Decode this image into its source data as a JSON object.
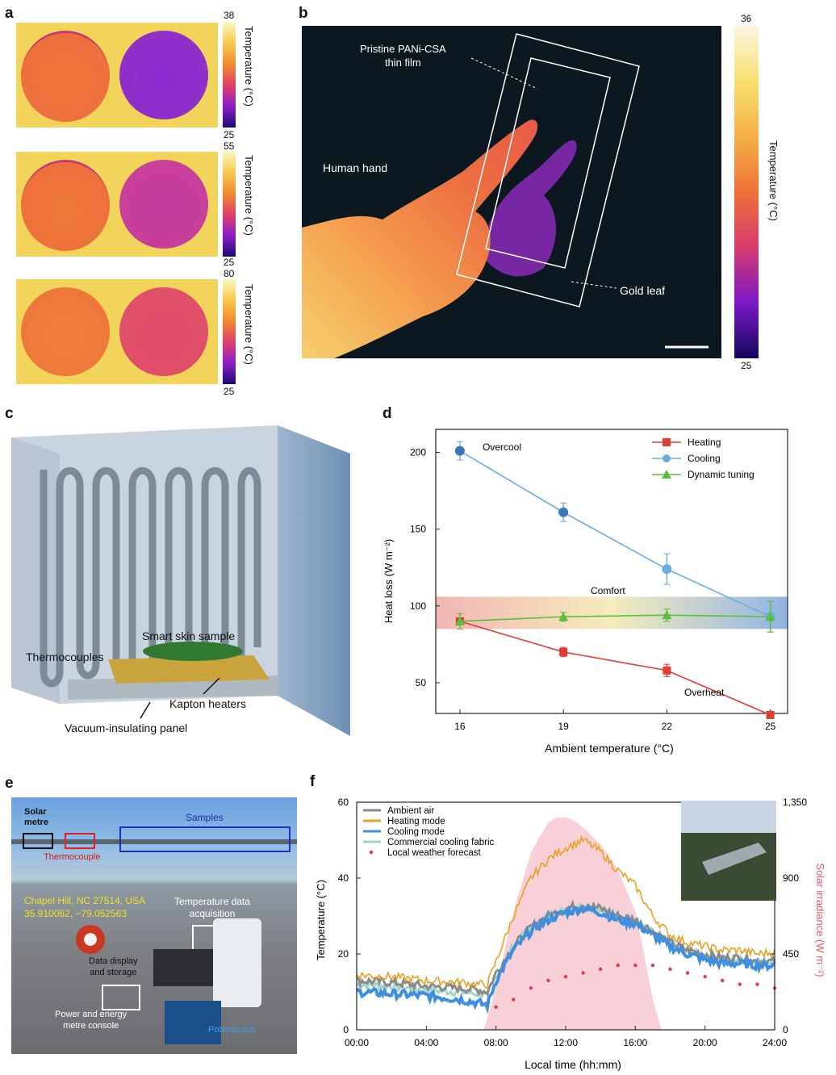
{
  "panel_a": {
    "label": "a",
    "colorbars": [
      {
        "max": "38",
        "min": "25",
        "title": "Temperature (°C)"
      },
      {
        "max": "55",
        "min": "25",
        "title": "Temperature (°C)"
      },
      {
        "max": "80",
        "min": "25",
        "title": "Temperature (°C)"
      }
    ]
  },
  "panel_b": {
    "label": "b",
    "film_label": "Pristine PANi-CSA thin film",
    "film_line1": "Pristine PANi-CSA",
    "film_line2": "thin film",
    "hand_label": "Human hand",
    "gold_label": "Gold leaf",
    "colorbar": {
      "max": "36",
      "min": "25",
      "title": "Temperature (°C)"
    }
  },
  "panel_c": {
    "label": "c",
    "smart_skin": "Smart skin sample",
    "thermocouples": "Thermocouples",
    "kapton": "Kapton heaters",
    "vacuum": "Vacuum-insulating panel"
  },
  "panel_d": {
    "label": "d",
    "overcool": "Overcool",
    "overheat": "Overheat",
    "comfort": "Comfort",
    "chart_data": {
      "type": "line",
      "title": "",
      "xlabel": "Ambient temperature (°C)",
      "ylabel": "Heat loss (W m⁻²)",
      "categories": [
        "16",
        "19",
        "22",
        "25"
      ],
      "x": [
        16,
        19,
        22,
        25
      ],
      "ylim": [
        30,
        215
      ],
      "yticks": [
        "50",
        "100",
        "150",
        "200"
      ],
      "comfort_band": [
        85,
        106
      ],
      "series": [
        {
          "name": "Heating",
          "color": "#e23b30",
          "marker": "square",
          "values": [
            90,
            70,
            58,
            29
          ],
          "errors": [
            0,
            3,
            4,
            0
          ]
        },
        {
          "name": "Cooling",
          "color": "#6aaee0",
          "marker": "circle",
          "values": [
            201,
            161,
            124,
            93
          ],
          "errors": [
            6,
            6,
            10,
            10
          ]
        },
        {
          "name": "Dynamic tuning",
          "color": "#5cbf3c",
          "marker": "triangle",
          "values": [
            90,
            93,
            94,
            93
          ],
          "errors": [
            5,
            3,
            4,
            10
          ]
        }
      ]
    }
  },
  "panel_e": {
    "label": "e",
    "solar": "Solar metre",
    "solar_line1": "Solar",
    "solar_line2": "metre",
    "samples": "Samples",
    "thermocouple": "Thermocouple",
    "location_line1": "Chapel Hill, NC 27514, USA",
    "location_line2": "35.910062, −79.052563",
    "acq_line1": "Temperature data",
    "acq_line2": "acquisition",
    "disp_line1": "Data display",
    "disp_line2": "and storage",
    "power_line1": "Power and energy",
    "power_line2": "metre console",
    "potentiostat": "Potentiostat"
  },
  "panel_f": {
    "label": "f",
    "chart_data": {
      "type": "line",
      "xlabel": "Local time (hh:mm)",
      "ylabel": "Temperature (°C)",
      "y2label": "Solar irradiance (W m⁻²)",
      "xticks": [
        "00:00",
        "04:00",
        "08:00",
        "12:00",
        "16:00",
        "20:00",
        "24:00"
      ],
      "xlim": [
        0,
        24
      ],
      "ylim": [
        0,
        60
      ],
      "yticks": [
        "0",
        "20",
        "40",
        "60"
      ],
      "y2lim": [
        0,
        1350
      ],
      "y2ticks": [
        "0",
        "450",
        "900",
        "1,350"
      ],
      "series": [
        {
          "name": "Ambient air",
          "color": "#8a8a8a",
          "x": [
            0,
            2,
            4,
            6,
            7,
            7.5,
            8,
            9,
            10,
            11,
            12,
            13,
            14,
            15,
            16,
            17,
            18,
            19,
            20,
            21,
            22,
            23,
            24
          ],
          "values": [
            13,
            12.5,
            11.5,
            11,
            10.5,
            10,
            15,
            22,
            27,
            30,
            32,
            33,
            32,
            30,
            29,
            26,
            23,
            21,
            20,
            19,
            19,
            18,
            18
          ]
        },
        {
          "name": "Heating mode",
          "color": "#e8a020",
          "x": [
            0,
            2,
            4,
            6,
            7,
            7.5,
            8,
            9,
            10,
            11,
            12,
            13,
            14,
            15,
            16,
            17,
            18,
            19,
            20,
            21,
            22,
            23,
            24
          ],
          "values": [
            14.5,
            14,
            13,
            12.5,
            12,
            12,
            18,
            30,
            40,
            45,
            48,
            50,
            47,
            42,
            38,
            30,
            25,
            23,
            22,
            21,
            21,
            20,
            20.5
          ]
        },
        {
          "name": "Cooling mode",
          "color": "#3f8fe0",
          "x": [
            0,
            2,
            4,
            6,
            7,
            7.5,
            8,
            9,
            10,
            11,
            12,
            13,
            14,
            15,
            16,
            17,
            18,
            19,
            20,
            21,
            22,
            23,
            24
          ],
          "values": [
            10,
            9.5,
            9,
            8,
            7,
            6.5,
            13,
            21,
            26,
            29,
            31,
            32,
            31,
            29,
            28,
            25,
            22,
            20,
            18.5,
            17.5,
            17.5,
            17,
            17
          ]
        },
        {
          "name": "Commercial cooling fabric",
          "color": "#9fd6c8",
          "x": [
            0,
            2,
            4,
            6,
            7,
            7.5,
            8,
            9,
            10,
            11,
            12,
            13,
            14,
            15,
            16,
            17,
            18,
            19,
            20,
            21,
            22,
            23,
            24
          ],
          "values": [
            12,
            11.5,
            10.5,
            10,
            9.5,
            9,
            14,
            22,
            27,
            30,
            31.5,
            32.5,
            31.5,
            29.5,
            28.5,
            25.5,
            22.5,
            20.5,
            19.5,
            18.5,
            18.5,
            18,
            18
          ]
        },
        {
          "name": "Local weather forecast",
          "color": "#e23b4e",
          "x": [
            8,
            9,
            10,
            11,
            12,
            13,
            14,
            15,
            16,
            17,
            18,
            19,
            20,
            21,
            22,
            23,
            24
          ],
          "values": [
            6,
            8,
            11,
            13,
            14,
            15,
            16,
            17,
            17,
            17,
            16,
            15,
            14,
            13,
            12,
            12,
            11
          ]
        },
        {
          "name": "Solar irradiance",
          "color": "#f8c8d0",
          "axis": "y2",
          "x": [
            7.3,
            8,
            9,
            10,
            11,
            11.5,
            12,
            12.5,
            13,
            14,
            15,
            16,
            16.5,
            17,
            17.5
          ],
          "values": [
            0,
            250,
            700,
            1050,
            1230,
            1260,
            1260,
            1240,
            1200,
            1100,
            950,
            700,
            450,
            180,
            0
          ]
        }
      ]
    }
  },
  "colors": {
    "axis": "#222222",
    "comfort_left": "#f0a8a8",
    "comfort_mid": "#f3e9b0",
    "comfort_right": "#7ea6e0"
  }
}
